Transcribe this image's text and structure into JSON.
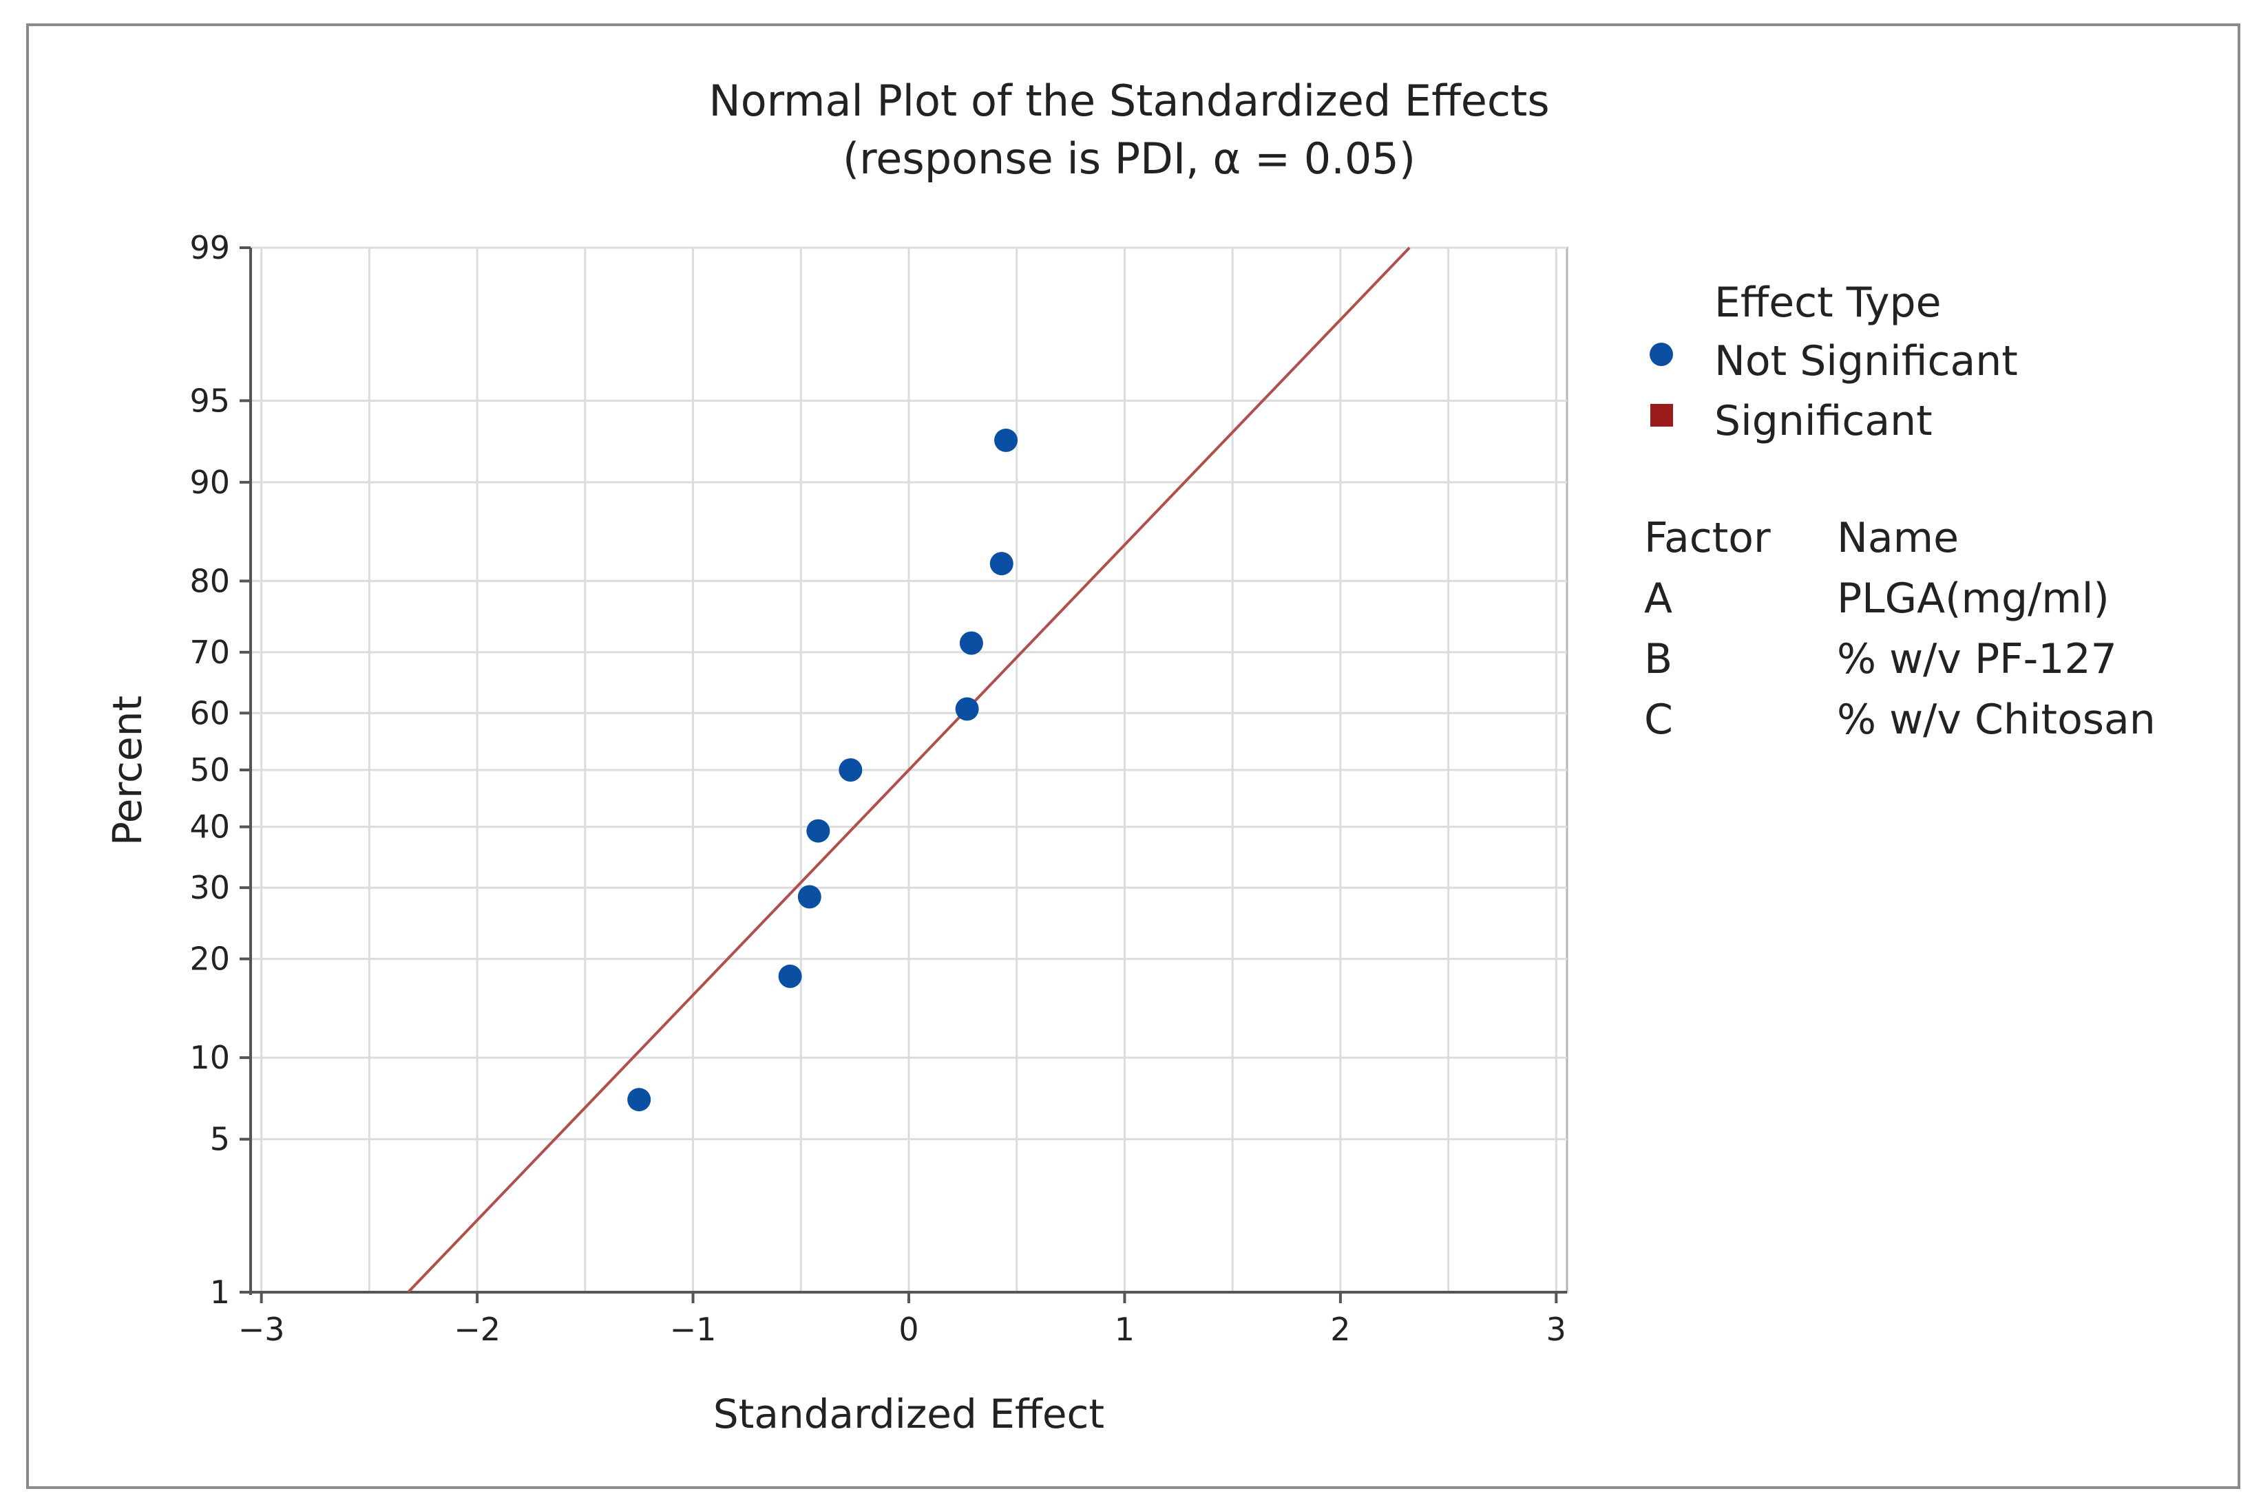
{
  "chart_data": {
    "type": "scatter",
    "title": "Normal Plot of the Standardized Effects",
    "subtitle": "(response is PDI, α = 0.05)",
    "xlabel": "Standardized Effect",
    "ylabel": "Percent",
    "xlim": [
      -3.05,
      3.05
    ],
    "x_ticks": [
      -3,
      -2,
      -1,
      0,
      1,
      2,
      3
    ],
    "x_tick_labels": [
      "−3",
      "−2",
      "−1",
      "0",
      "1",
      "2",
      "3"
    ],
    "y_ticks": [
      1,
      5,
      10,
      20,
      30,
      40,
      50,
      60,
      70,
      80,
      90,
      95,
      99
    ],
    "y_tick_labels": [
      "1",
      "5",
      "10",
      "20",
      "30",
      "40",
      "50",
      "60",
      "70",
      "80",
      "90",
      "95",
      "99"
    ],
    "ylim_percent": [
      1,
      99
    ],
    "grid": true,
    "series": [
      {
        "name": "Not Significant",
        "marker": "circle",
        "color": "#0b4fa3",
        "points": [
          {
            "x": -1.25,
            "y": 7.1
          },
          {
            "x": -0.55,
            "y": 17.9
          },
          {
            "x": -0.46,
            "y": 28.6
          },
          {
            "x": -0.42,
            "y": 39.3
          },
          {
            "x": -0.27,
            "y": 50.0
          },
          {
            "x": 0.27,
            "y": 60.7
          },
          {
            "x": 0.29,
            "y": 71.4
          },
          {
            "x": 0.43,
            "y": 82.1
          },
          {
            "x": 0.45,
            "y": 92.9
          }
        ]
      },
      {
        "name": "Significant",
        "marker": "square",
        "color": "#9b1b1b",
        "points": []
      }
    ],
    "fit_line": {
      "color": "#b0504a",
      "from": {
        "x": -2.32,
        "y": 1
      },
      "to": {
        "x": 2.32,
        "y": 99
      }
    },
    "legend": {
      "title": "Effect Type",
      "position": "right",
      "entries": [
        {
          "label": "Not Significant",
          "marker": "circle",
          "color": "#0b4fa3"
        },
        {
          "label": "Significant",
          "marker": "square",
          "color": "#9b1b1b"
        }
      ],
      "factor_header": "Factor",
      "name_header": "Name",
      "factors": [
        {
          "factor": "A",
          "name": "PLGA(mg/ml)"
        },
        {
          "factor": "B",
          "name": "% w/v PF-127"
        },
        {
          "factor": "C",
          "name": "% w/v Chitosan"
        }
      ]
    }
  }
}
